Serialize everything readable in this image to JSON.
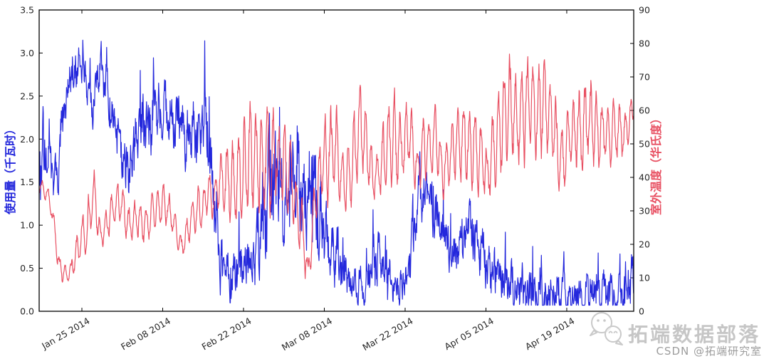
{
  "page": {
    "background": "#ffffff"
  },
  "watermark": {
    "logo_icon": "chat-bubbles-faces",
    "brand_text": "拓端数据部落",
    "brand_color": "#bdbdbd",
    "csdn_text": "CSDN @拓端研究室",
    "csdn_color": "#9d9d9d"
  },
  "chart_data": {
    "type": "line",
    "title": "",
    "grid": false,
    "legend": "none",
    "frame_color": "#000000",
    "tick_label_color": "#262626",
    "x_axis": {
      "domain_days": [
        0,
        103
      ],
      "tick_days": [
        7.4,
        21.4,
        35.4,
        49.4,
        63.4,
        77.4,
        91.4
      ],
      "tick_labels": [
        "Jan 25 2014",
        "Feb 08 2014",
        "Feb 22 2014",
        "Mar 08 2014",
        "Mar 22 2014",
        "Apr 05 2014",
        "Apr 19 2014"
      ]
    },
    "y_left": {
      "label": "使用量（千瓦时）",
      "color": "#2428dc",
      "min": 0.0,
      "max": 3.5,
      "ticks": [
        "3.5",
        "3.0",
        "2.5",
        "2.0",
        "1.5",
        "1.0",
        "0.5",
        "0.0"
      ]
    },
    "y_right": {
      "label": "室外温度（华氏度）",
      "color": "#e85062",
      "min": 0,
      "max": 90,
      "ticks": [
        "90",
        "80",
        "70",
        "60",
        "50",
        "40",
        "30",
        "20",
        "10",
        "0"
      ]
    },
    "series": [
      {
        "name": "使用量（千瓦时）",
        "axis": "left",
        "color": "#2428dc",
        "style": "spiky",
        "seed": 9,
        "ar": 0.5,
        "clamp": [
          0.07,
          3.45
        ],
        "mean_amp": [
          [
            0,
            2.0,
            0.85
          ],
          [
            1,
            1.75,
            0.55
          ],
          [
            2.5,
            1.45,
            0.3
          ],
          [
            3.5,
            1.8,
            0.45
          ],
          [
            5,
            2.7,
            0.35
          ],
          [
            6.5,
            2.8,
            0.3
          ],
          [
            8,
            2.75,
            0.3
          ],
          [
            9.3,
            2.35,
            0.25
          ],
          [
            10.5,
            2.85,
            0.3
          ],
          [
            11.5,
            2.55,
            0.35
          ],
          [
            13,
            2.15,
            0.35
          ],
          [
            15.5,
            1.55,
            0.45
          ],
          [
            17,
            2.1,
            0.4
          ],
          [
            19,
            2.2,
            0.45
          ],
          [
            21,
            2.35,
            0.35
          ],
          [
            23,
            2.3,
            0.4
          ],
          [
            25,
            2.1,
            0.4
          ],
          [
            27,
            2.0,
            0.45
          ],
          [
            29,
            2.2,
            0.6
          ],
          [
            30.3,
            1.4,
            0.5
          ],
          [
            31.5,
            0.55,
            0.4
          ],
          [
            33,
            0.35,
            0.3
          ],
          [
            34.5,
            0.5,
            0.4
          ],
          [
            36,
            0.55,
            0.45
          ],
          [
            38,
            0.65,
            0.5
          ],
          [
            40,
            1.5,
            0.85
          ],
          [
            41.5,
            1.7,
            0.8
          ],
          [
            43,
            1.4,
            0.7
          ],
          [
            44.8,
            1.6,
            0.75
          ],
          [
            46,
            1.2,
            0.7
          ],
          [
            47.5,
            1.5,
            0.8
          ],
          [
            49,
            1.1,
            0.6
          ],
          [
            50.5,
            0.75,
            0.45
          ],
          [
            52,
            0.6,
            0.4
          ],
          [
            54,
            0.35,
            0.25
          ],
          [
            56,
            0.3,
            0.25
          ],
          [
            58,
            0.55,
            0.4
          ],
          [
            60,
            0.45,
            0.35
          ],
          [
            61.5,
            0.25,
            0.2
          ],
          [
            63,
            0.3,
            0.25
          ],
          [
            64.5,
            0.7,
            0.45
          ],
          [
            66,
            1.2,
            0.45
          ],
          [
            67.3,
            1.45,
            0.35
          ],
          [
            68.5,
            1.2,
            0.4
          ],
          [
            70,
            0.85,
            0.35
          ],
          [
            71.5,
            0.6,
            0.3
          ],
          [
            73,
            0.7,
            0.35
          ],
          [
            74.5,
            1.0,
            0.35
          ],
          [
            76,
            0.8,
            0.4
          ],
          [
            77.5,
            0.55,
            0.35
          ],
          [
            79,
            0.45,
            0.35
          ],
          [
            80.5,
            0.35,
            0.3
          ],
          [
            82,
            0.3,
            0.3
          ],
          [
            83.5,
            0.25,
            0.3
          ],
          [
            85,
            0.3,
            0.45
          ],
          [
            86.5,
            0.2,
            0.25
          ],
          [
            88,
            0.2,
            0.3
          ],
          [
            90,
            0.18,
            0.28
          ],
          [
            92,
            0.18,
            0.25
          ],
          [
            94,
            0.2,
            0.3
          ],
          [
            96,
            0.18,
            0.28
          ],
          [
            98,
            0.2,
            0.3
          ],
          [
            100,
            0.22,
            0.35
          ],
          [
            101.5,
            0.25,
            0.4
          ],
          [
            103,
            0.3,
            0.45
          ]
        ]
      },
      {
        "name": "室外温度（华氏度）",
        "axis": "right",
        "color": "#e85062",
        "style": "diurnal",
        "seed": 7,
        "ar": 0.6,
        "clamp": [
          3,
          88
        ],
        "mean_amp": [
          [
            0,
            38,
            2
          ],
          [
            1.5,
            35,
            3
          ],
          [
            2.5,
            27,
            4
          ],
          [
            3.5,
            13,
            4
          ],
          [
            4.5,
            10,
            3
          ],
          [
            5.5,
            12,
            4
          ],
          [
            6.5,
            17,
            5
          ],
          [
            8,
            24,
            7
          ],
          [
            9.6,
            35,
            8
          ],
          [
            10.6,
            21,
            5
          ],
          [
            12,
            27,
            5
          ],
          [
            13.8,
            33,
            6
          ],
          [
            15.5,
            26,
            5
          ],
          [
            17,
            28,
            6
          ],
          [
            18.5,
            26,
            5
          ],
          [
            20,
            30,
            6
          ],
          [
            21.5,
            32,
            6
          ],
          [
            23,
            29,
            6
          ],
          [
            24.5,
            18,
            4
          ],
          [
            26,
            26,
            5
          ],
          [
            27.5,
            31,
            6
          ],
          [
            29,
            33,
            7
          ],
          [
            30.5,
            35,
            8
          ],
          [
            32,
            37,
            12
          ],
          [
            33.5,
            38,
            13
          ],
          [
            35,
            42,
            14
          ],
          [
            36.5,
            46,
            15
          ],
          [
            38,
            44,
            14
          ],
          [
            39.5,
            45,
            14
          ],
          [
            41,
            46,
            14
          ],
          [
            42.5,
            44,
            12
          ],
          [
            44,
            38,
            10
          ],
          [
            45.5,
            24,
            9
          ],
          [
            46.6,
            10,
            5
          ],
          [
            47.6,
            30,
            8
          ],
          [
            48.6,
            42,
            8
          ],
          [
            50,
            48,
            14
          ],
          [
            51.5,
            46,
            13
          ],
          [
            53,
            36,
            8
          ],
          [
            54.5,
            48,
            14
          ],
          [
            56,
            55,
            13
          ],
          [
            57.5,
            42,
            9
          ],
          [
            58.8,
            40,
            7
          ],
          [
            60,
            47,
            12
          ],
          [
            61.5,
            52,
            13
          ],
          [
            63,
            50,
            14
          ],
          [
            64,
            55,
            12
          ],
          [
            65.5,
            41,
            7
          ],
          [
            67,
            50,
            11
          ],
          [
            68.5,
            53,
            11
          ],
          [
            70,
            42,
            7
          ],
          [
            71.5,
            48,
            10
          ],
          [
            73,
            52,
            11
          ],
          [
            74.5,
            50,
            12
          ],
          [
            76,
            47,
            12
          ],
          [
            77.5,
            41,
            9
          ],
          [
            79,
            50,
            12
          ],
          [
            80.5,
            58,
            15
          ],
          [
            82,
            62,
            16
          ],
          [
            83.5,
            58,
            15
          ],
          [
            85,
            64,
            17
          ],
          [
            86.3,
            60,
            16
          ],
          [
            87.5,
            62,
            15
          ],
          [
            89,
            55,
            12
          ],
          [
            90.5,
            45,
            10
          ],
          [
            92,
            52,
            12
          ],
          [
            93.5,
            54,
            12
          ],
          [
            95,
            58,
            14
          ],
          [
            96.5,
            56,
            12
          ],
          [
            98,
            54,
            9
          ],
          [
            99.5,
            55,
            9
          ],
          [
            101,
            52,
            7
          ],
          [
            102.2,
            55,
            7
          ],
          [
            103,
            62,
            4
          ]
        ]
      }
    ],
    "render": {
      "step_days": 0.06,
      "line_width": 1.2
    }
  }
}
